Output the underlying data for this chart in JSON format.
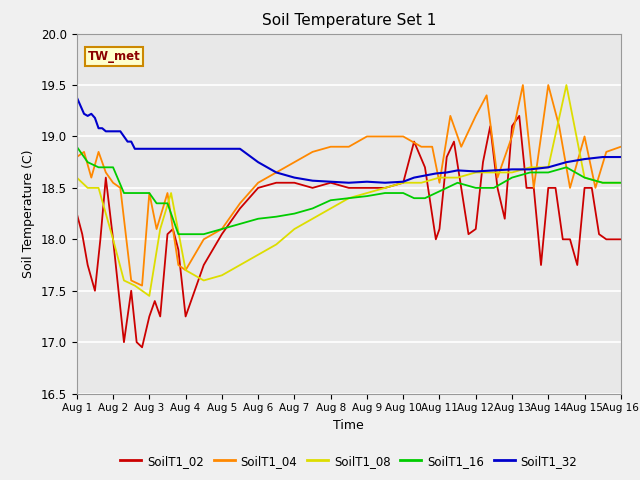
{
  "title": "Soil Temperature Set 1",
  "xlabel": "Time",
  "ylabel": "Soil Temperature (C)",
  "ylim": [
    16.5,
    20.0
  ],
  "xlim": [
    1,
    16
  ],
  "annotation": "TW_met",
  "series": {
    "SoilT1_02": {
      "color": "#cc0000",
      "linewidth": 1.3,
      "x": [
        1.0,
        1.15,
        1.3,
        1.5,
        1.65,
        1.8,
        2.0,
        2.15,
        2.3,
        2.5,
        2.65,
        2.8,
        3.0,
        3.15,
        3.3,
        3.5,
        3.65,
        3.8,
        4.0,
        4.5,
        5.0,
        5.5,
        6.0,
        6.5,
        7.0,
        7.5,
        8.0,
        8.5,
        9.0,
        9.5,
        10.0,
        10.3,
        10.6,
        10.9,
        11.0,
        11.2,
        11.4,
        11.6,
        11.8,
        12.0,
        12.2,
        12.4,
        12.6,
        12.8,
        13.0,
        13.2,
        13.4,
        13.6,
        13.8,
        14.0,
        14.2,
        14.4,
        14.6,
        14.8,
        15.0,
        15.2,
        15.4,
        15.6,
        15.8,
        16.0
      ],
      "y": [
        18.25,
        18.05,
        17.75,
        17.5,
        18.0,
        18.6,
        18.0,
        17.5,
        17.0,
        17.5,
        17.0,
        16.95,
        17.25,
        17.4,
        17.25,
        18.05,
        18.1,
        17.9,
        17.25,
        17.75,
        18.05,
        18.3,
        18.5,
        18.55,
        18.55,
        18.5,
        18.55,
        18.5,
        18.5,
        18.5,
        18.55,
        18.95,
        18.7,
        18.0,
        18.1,
        18.8,
        18.95,
        18.5,
        18.05,
        18.1,
        18.75,
        19.1,
        18.5,
        18.2,
        19.1,
        19.2,
        18.5,
        18.5,
        17.75,
        18.5,
        18.5,
        18.0,
        18.0,
        17.75,
        18.5,
        18.5,
        18.05,
        18.0,
        18.0,
        18.0
      ]
    },
    "SoilT1_04": {
      "color": "#ff8800",
      "linewidth": 1.3,
      "x": [
        1.0,
        1.2,
        1.4,
        1.6,
        1.8,
        2.0,
        2.2,
        2.5,
        2.8,
        3.0,
        3.2,
        3.5,
        3.8,
        4.0,
        4.5,
        5.0,
        5.5,
        6.0,
        6.5,
        7.0,
        7.5,
        8.0,
        8.5,
        9.0,
        9.5,
        10.0,
        10.5,
        10.8,
        11.0,
        11.3,
        11.6,
        12.0,
        12.3,
        12.6,
        13.0,
        13.3,
        13.6,
        14.0,
        14.3,
        14.6,
        15.0,
        15.3,
        15.6,
        16.0
      ],
      "y": [
        18.8,
        18.85,
        18.6,
        18.85,
        18.65,
        18.55,
        18.5,
        17.6,
        17.55,
        18.45,
        18.1,
        18.45,
        17.75,
        17.7,
        18.0,
        18.1,
        18.35,
        18.55,
        18.65,
        18.75,
        18.85,
        18.9,
        18.9,
        19.0,
        19.0,
        19.0,
        18.9,
        18.9,
        18.55,
        19.2,
        18.9,
        19.2,
        19.4,
        18.6,
        19.0,
        19.5,
        18.5,
        19.5,
        19.1,
        18.5,
        19.0,
        18.5,
        18.85,
        18.9
      ]
    },
    "SoilT1_08": {
      "color": "#dddd00",
      "linewidth": 1.3,
      "x": [
        1.0,
        1.3,
        1.6,
        2.0,
        2.3,
        2.6,
        3.0,
        3.3,
        3.6,
        4.0,
        4.5,
        5.0,
        5.5,
        6.0,
        6.5,
        7.0,
        7.5,
        8.0,
        8.5,
        9.0,
        9.5,
        10.0,
        10.5,
        11.0,
        11.5,
        12.0,
        12.5,
        13.0,
        13.5,
        14.0,
        14.5,
        15.0,
        15.5,
        16.0
      ],
      "y": [
        18.6,
        18.5,
        18.5,
        18.0,
        17.6,
        17.55,
        17.45,
        18.1,
        18.45,
        17.7,
        17.6,
        17.65,
        17.75,
        17.85,
        17.95,
        18.1,
        18.2,
        18.3,
        18.4,
        18.45,
        18.5,
        18.55,
        18.55,
        18.6,
        18.6,
        18.65,
        18.65,
        18.65,
        18.7,
        18.7,
        19.5,
        18.6,
        18.55,
        18.55
      ]
    },
    "SoilT1_16": {
      "color": "#00cc00",
      "linewidth": 1.3,
      "x": [
        1.0,
        1.3,
        1.6,
        2.0,
        2.3,
        2.6,
        3.0,
        3.2,
        3.5,
        3.8,
        4.0,
        4.5,
        5.0,
        5.5,
        6.0,
        6.5,
        7.0,
        7.5,
        8.0,
        8.5,
        9.0,
        9.5,
        10.0,
        10.3,
        10.6,
        10.9,
        11.2,
        11.5,
        12.0,
        12.5,
        13.0,
        13.5,
        14.0,
        14.5,
        15.0,
        15.5,
        16.0
      ],
      "y": [
        18.9,
        18.75,
        18.7,
        18.7,
        18.45,
        18.45,
        18.45,
        18.35,
        18.35,
        18.05,
        18.05,
        18.05,
        18.1,
        18.15,
        18.2,
        18.22,
        18.25,
        18.3,
        18.38,
        18.4,
        18.42,
        18.45,
        18.45,
        18.4,
        18.4,
        18.45,
        18.5,
        18.55,
        18.5,
        18.5,
        18.6,
        18.65,
        18.65,
        18.7,
        18.6,
        18.55,
        18.55
      ]
    },
    "SoilT1_32": {
      "color": "#0000cc",
      "linewidth": 1.5,
      "x": [
        1.0,
        1.1,
        1.2,
        1.3,
        1.4,
        1.5,
        1.6,
        1.7,
        1.8,
        1.9,
        2.0,
        2.1,
        2.2,
        2.3,
        2.4,
        2.5,
        2.6,
        2.7,
        2.8,
        2.9,
        3.0,
        3.1,
        3.2,
        3.3,
        3.5,
        3.7,
        3.9,
        4.1,
        4.5,
        5.0,
        5.5,
        6.0,
        6.5,
        7.0,
        7.5,
        8.0,
        8.5,
        9.0,
        9.5,
        10.0,
        10.3,
        10.6,
        10.9,
        11.2,
        11.5,
        12.0,
        12.5,
        13.0,
        13.5,
        14.0,
        14.5,
        15.0,
        15.5,
        16.0
      ],
      "y": [
        19.38,
        19.3,
        19.22,
        19.2,
        19.22,
        19.18,
        19.08,
        19.08,
        19.05,
        19.05,
        19.05,
        19.05,
        19.05,
        19.0,
        18.95,
        18.95,
        18.88,
        18.88,
        18.88,
        18.88,
        18.88,
        18.88,
        18.88,
        18.88,
        18.88,
        18.88,
        18.88,
        18.88,
        18.88,
        18.88,
        18.88,
        18.75,
        18.65,
        18.6,
        18.57,
        18.56,
        18.55,
        18.56,
        18.55,
        18.56,
        18.6,
        18.62,
        18.64,
        18.65,
        18.67,
        18.66,
        18.67,
        18.68,
        18.68,
        18.7,
        18.75,
        18.78,
        18.8,
        18.8
      ]
    }
  },
  "xticks": [
    1,
    2,
    3,
    4,
    5,
    6,
    7,
    8,
    9,
    10,
    11,
    12,
    13,
    14,
    15,
    16
  ],
  "xtick_labels": [
    "Aug 1",
    "Aug 2",
    "Aug 3",
    "Aug 4",
    "Aug 5",
    "Aug 6",
    "Aug 7",
    "Aug 8",
    "Aug 9",
    "Aug 10",
    "Aug 11",
    "Aug 12",
    "Aug 13",
    "Aug 14",
    "Aug 15",
    "Aug 16"
  ],
  "yticks": [
    16.5,
    17.0,
    17.5,
    18.0,
    18.5,
    19.0,
    19.5,
    20.0
  ],
  "legend_order": [
    "SoilT1_02",
    "SoilT1_04",
    "SoilT1_08",
    "SoilT1_16",
    "SoilT1_32"
  ]
}
